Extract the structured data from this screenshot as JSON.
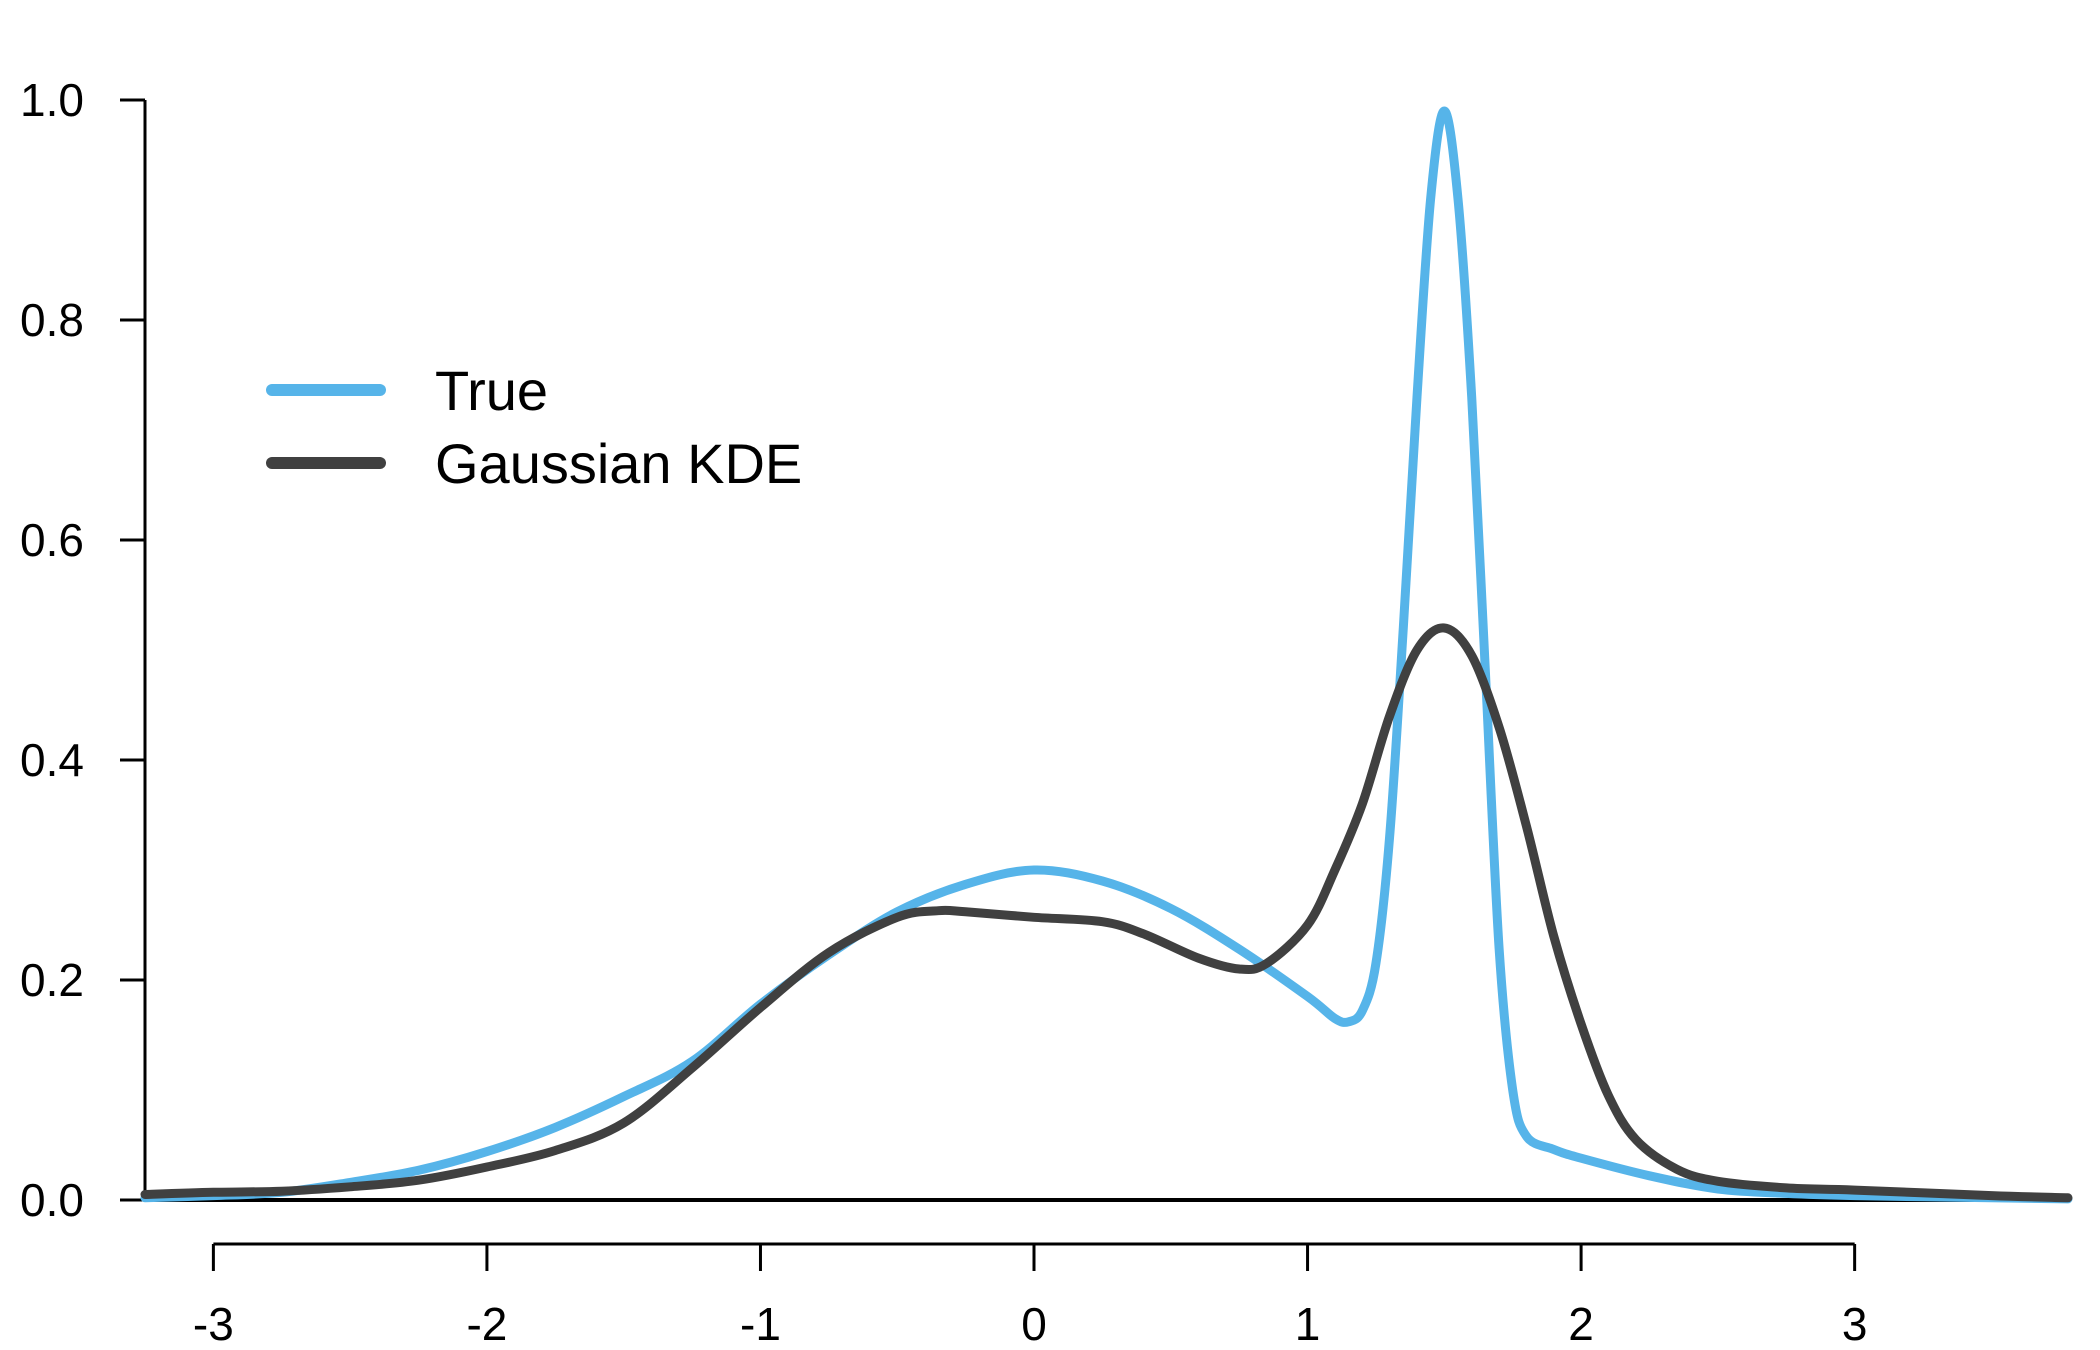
{
  "chart_data": {
    "type": "line",
    "title": "",
    "xlabel": "",
    "ylabel": "",
    "xlim": [
      -3.25,
      3.78
    ],
    "ylim": [
      0.0,
      1.0
    ],
    "x_ticks": [
      -3,
      -2,
      -1,
      0,
      1,
      2,
      3
    ],
    "x_tick_labels": [
      "-3",
      "-2",
      "-1",
      "0",
      "1",
      "2",
      "3"
    ],
    "y_ticks": [
      0.0,
      0.2,
      0.4,
      0.6,
      0.8,
      1.0
    ],
    "y_tick_labels": [
      "0.0",
      "0.2",
      "0.4",
      "0.6",
      "0.8",
      "1.0"
    ],
    "grid": false,
    "legend_position": "top-left",
    "series": [
      {
        "name": "True",
        "color": "#56B4E9",
        "points": [
          [
            -3.25,
            0.002
          ],
          [
            -3.0,
            0.004
          ],
          [
            -2.75,
            0.007
          ],
          [
            -2.5,
            0.016
          ],
          [
            -2.25,
            0.027
          ],
          [
            -2.0,
            0.044
          ],
          [
            -1.75,
            0.066
          ],
          [
            -1.5,
            0.094
          ],
          [
            -1.25,
            0.126
          ],
          [
            -1.0,
            0.178
          ],
          [
            -0.75,
            0.223
          ],
          [
            -0.5,
            0.262
          ],
          [
            -0.25,
            0.287
          ],
          [
            0.0,
            0.3
          ],
          [
            0.25,
            0.29
          ],
          [
            0.5,
            0.265
          ],
          [
            0.75,
            0.228
          ],
          [
            1.0,
            0.185
          ],
          [
            1.1,
            0.165
          ],
          [
            1.15,
            0.162
          ],
          [
            1.2,
            0.172
          ],
          [
            1.25,
            0.215
          ],
          [
            1.3,
            0.33
          ],
          [
            1.35,
            0.52
          ],
          [
            1.4,
            0.73
          ],
          [
            1.45,
            0.91
          ],
          [
            1.5,
            0.99
          ],
          [
            1.55,
            0.91
          ],
          [
            1.6,
            0.73
          ],
          [
            1.65,
            0.48
          ],
          [
            1.7,
            0.23
          ],
          [
            1.75,
            0.1
          ],
          [
            1.8,
            0.058
          ],
          [
            1.9,
            0.046
          ],
          [
            2.0,
            0.038
          ],
          [
            2.25,
            0.022
          ],
          [
            2.5,
            0.01
          ],
          [
            2.75,
            0.006
          ],
          [
            3.0,
            0.004
          ],
          [
            3.5,
            0.002
          ],
          [
            3.78,
            0.001
          ]
        ]
      },
      {
        "name": "Gaussian KDE",
        "color": "#404040",
        "points": [
          [
            -3.25,
            0.005
          ],
          [
            -3.0,
            0.007
          ],
          [
            -2.75,
            0.008
          ],
          [
            -2.5,
            0.012
          ],
          [
            -2.25,
            0.018
          ],
          [
            -2.0,
            0.03
          ],
          [
            -1.75,
            0.045
          ],
          [
            -1.5,
            0.07
          ],
          [
            -1.25,
            0.12
          ],
          [
            -1.0,
            0.175
          ],
          [
            -0.75,
            0.225
          ],
          [
            -0.5,
            0.257
          ],
          [
            -0.35,
            0.263
          ],
          [
            -0.25,
            0.262
          ],
          [
            0.0,
            0.257
          ],
          [
            0.25,
            0.253
          ],
          [
            0.4,
            0.242
          ],
          [
            0.6,
            0.22
          ],
          [
            0.75,
            0.21
          ],
          [
            0.85,
            0.215
          ],
          [
            1.0,
            0.25
          ],
          [
            1.1,
            0.3
          ],
          [
            1.2,
            0.36
          ],
          [
            1.3,
            0.44
          ],
          [
            1.4,
            0.5
          ],
          [
            1.5,
            0.52
          ],
          [
            1.6,
            0.495
          ],
          [
            1.7,
            0.43
          ],
          [
            1.8,
            0.34
          ],
          [
            1.9,
            0.24
          ],
          [
            2.0,
            0.16
          ],
          [
            2.1,
            0.095
          ],
          [
            2.2,
            0.055
          ],
          [
            2.35,
            0.028
          ],
          [
            2.5,
            0.017
          ],
          [
            2.75,
            0.011
          ],
          [
            3.0,
            0.009
          ],
          [
            3.5,
            0.004
          ],
          [
            3.78,
            0.002
          ]
        ]
      }
    ]
  }
}
